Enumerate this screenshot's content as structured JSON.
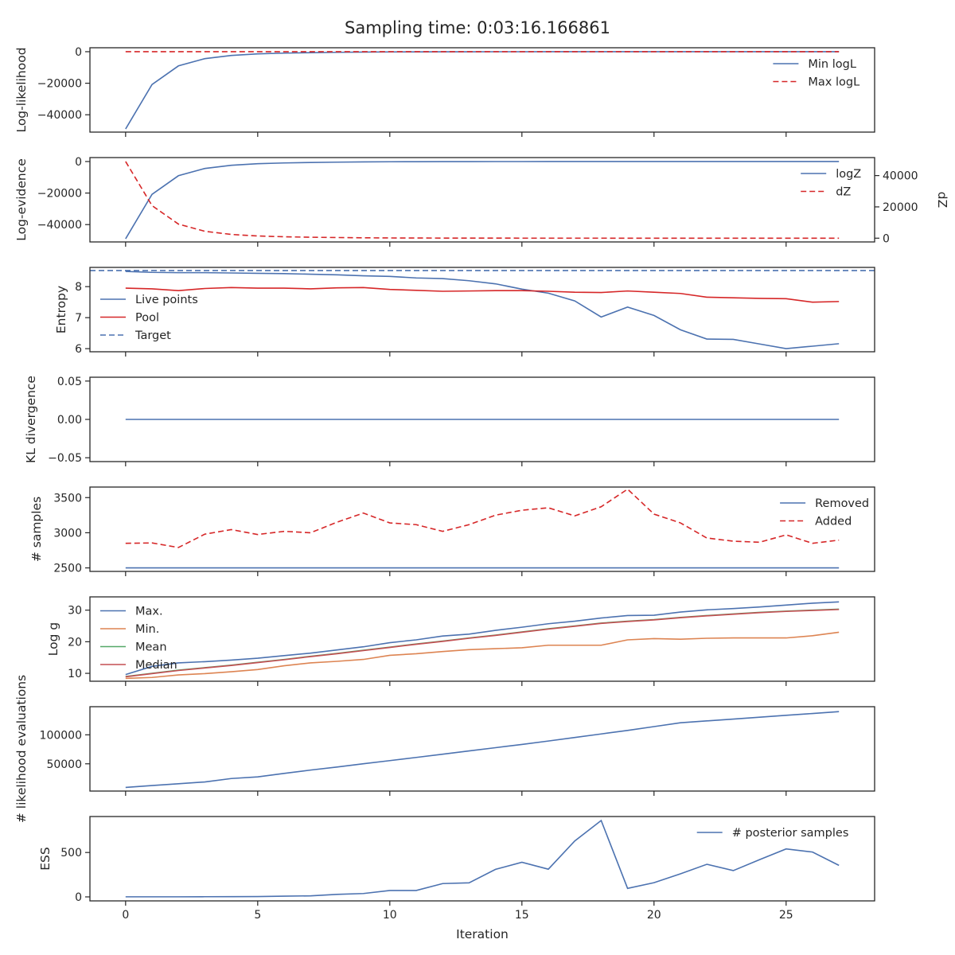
{
  "figure": {
    "title": "Sampling time: 0:03:16.166861",
    "xlabel": "Iteration"
  },
  "colors": {
    "blue": "#4c72b0",
    "orange": "#dd8452",
    "green": "#55a868",
    "red": "#c44e52",
    "redDash": "#d62728",
    "axis": "#262626"
  },
  "chart_data": [
    {
      "type": "line",
      "ylabel": "Log-likelihood",
      "xlim": [
        -1.35,
        28.35
      ],
      "ylim": [
        -51000,
        2500
      ],
      "xticks": [
        0,
        5,
        10,
        15,
        20,
        25
      ],
      "yticks": [
        0,
        -20000,
        -40000
      ],
      "ytick_labels": [
        "0",
        "−20000",
        "−40000"
      ],
      "legend": "top-right",
      "series": [
        {
          "name": "Min logL",
          "style": "solid",
          "color": "#4c72b0",
          "x": [
            0,
            1,
            2,
            3,
            4,
            5,
            6,
            7,
            8,
            9,
            10,
            11,
            12,
            13,
            14,
            15,
            16,
            17,
            18,
            19,
            20,
            21,
            22,
            23,
            24,
            25,
            26,
            27
          ],
          "y": [
            -49000,
            -20800,
            -9000,
            -4400,
            -2400,
            -1400,
            -900,
            -600,
            -400,
            -250,
            -150,
            -100,
            -60,
            -40,
            -30,
            -20,
            -15,
            -10,
            -8,
            -6,
            -5,
            -4,
            -3,
            -2,
            -2,
            -1,
            -1,
            -1
          ]
        },
        {
          "name": "Max logL",
          "style": "dashed",
          "color": "#d62728",
          "x": [
            0,
            27
          ],
          "y": [
            0,
            0
          ]
        }
      ]
    },
    {
      "type": "line",
      "ylabel": "Log-evidence",
      "y2label": "dZ",
      "xlim": [
        -1.35,
        28.35
      ],
      "ylim": [
        -51000,
        2500
      ],
      "y2lim": [
        -2400,
        51500
      ],
      "xticks": [
        0,
        5,
        10,
        15,
        20,
        25
      ],
      "yticks": [
        0,
        -20000,
        -40000
      ],
      "ytick_labels": [
        "0",
        "−20000",
        "−40000"
      ],
      "y2ticks": [
        0,
        20000,
        40000
      ],
      "y2tick_labels": [
        "0",
        "20000",
        "40000"
      ],
      "legend": "top-right",
      "series": [
        {
          "name": "logZ",
          "style": "solid",
          "color": "#4c72b0",
          "axis": "left",
          "x": [
            0,
            1,
            2,
            3,
            4,
            5,
            6,
            7,
            8,
            9,
            10,
            11,
            12,
            13,
            14,
            15,
            16,
            17,
            18,
            19,
            20,
            21,
            22,
            23,
            24,
            25,
            26,
            27
          ],
          "y": [
            -49000,
            -20800,
            -9000,
            -4400,
            -2400,
            -1400,
            -900,
            -600,
            -400,
            -250,
            -150,
            -100,
            -60,
            -40,
            -30,
            -20,
            -15,
            -10,
            -8,
            -6,
            -5,
            -4,
            -3,
            -2,
            -2,
            -1,
            -1,
            -1
          ]
        },
        {
          "name": "dZ",
          "style": "dashed",
          "color": "#d62728",
          "axis": "right",
          "x": [
            0,
            1,
            2,
            3,
            4,
            5,
            6,
            7,
            8,
            9,
            10,
            11,
            12,
            13,
            14,
            15,
            16,
            17,
            18,
            19,
            20,
            21,
            22,
            23,
            24,
            25,
            26,
            27
          ],
          "y": [
            49000,
            20800,
            9000,
            4400,
            2400,
            1400,
            900,
            600,
            400,
            250,
            150,
            100,
            60,
            40,
            30,
            20,
            15,
            10,
            8,
            6,
            5,
            4,
            3,
            2,
            2,
            1,
            1,
            0
          ]
        }
      ]
    },
    {
      "type": "line",
      "ylabel": "Entropy",
      "xlim": [
        -1.35,
        28.35
      ],
      "ylim": [
        5.9,
        8.62
      ],
      "xticks": [
        0,
        5,
        10,
        15,
        20,
        25
      ],
      "yticks": [
        6,
        7,
        8
      ],
      "ytick_labels": [
        "6",
        "7",
        "8"
      ],
      "legend": "left",
      "series": [
        {
          "name": "Live points",
          "style": "solid",
          "color": "#4c72b0",
          "x": [
            0,
            1,
            2,
            3,
            4,
            5,
            6,
            7,
            8,
            9,
            10,
            11,
            12,
            13,
            14,
            15,
            16,
            17,
            18,
            19,
            20,
            21,
            22,
            23,
            24,
            25,
            26,
            27
          ],
          "y": [
            8.49,
            8.46,
            8.45,
            8.45,
            8.44,
            8.43,
            8.42,
            8.4,
            8.38,
            8.35,
            8.33,
            8.28,
            8.26,
            8.19,
            8.09,
            7.92,
            7.79,
            7.54,
            7.02,
            7.34,
            7.07,
            6.61,
            6.31,
            6.3,
            6.15,
            6.0,
            6.08,
            6.16
          ]
        },
        {
          "name": "Pool",
          "style": "solid",
          "color": "#d62728",
          "x": [
            0,
            1,
            2,
            3,
            4,
            5,
            6,
            7,
            8,
            9,
            10,
            11,
            12,
            13,
            14,
            15,
            16,
            17,
            18,
            19,
            20,
            21,
            22,
            23,
            24,
            25,
            26,
            27
          ],
          "y": [
            7.95,
            7.93,
            7.87,
            7.94,
            7.97,
            7.95,
            7.95,
            7.93,
            7.96,
            7.97,
            7.91,
            7.88,
            7.85,
            7.86,
            7.87,
            7.87,
            7.85,
            7.82,
            7.81,
            7.86,
            7.82,
            7.78,
            7.66,
            7.64,
            7.62,
            7.61,
            7.5,
            7.52
          ]
        },
        {
          "name": "Target",
          "style": "dashed",
          "color": "#4c72b0",
          "hline": 8.52
        }
      ]
    },
    {
      "type": "line",
      "ylabel": "KL divergence",
      "xlim": [
        -1.35,
        28.35
      ],
      "ylim": [
        -0.055,
        0.055
      ],
      "xticks": [
        0,
        5,
        10,
        15,
        20,
        25
      ],
      "yticks": [
        0.05,
        0.0,
        -0.05
      ],
      "ytick_labels": [
        "0.05",
        "0.00",
        "−0.05"
      ],
      "series": [
        {
          "name": "",
          "style": "solid",
          "color": "#4c72b0",
          "x": [
            0,
            27
          ],
          "y": [
            0,
            0
          ]
        }
      ]
    },
    {
      "type": "line",
      "ylabel": "# samples",
      "xlim": [
        -1.35,
        28.35
      ],
      "ylim": [
        2450,
        3650
      ],
      "xticks": [
        0,
        5,
        10,
        15,
        20,
        25
      ],
      "yticks": [
        3500,
        3000,
        2500
      ],
      "ytick_labels": [
        "3500",
        "3000",
        "2500"
      ],
      "legend": "top-right",
      "series": [
        {
          "name": "Removed",
          "style": "solid",
          "color": "#4c72b0",
          "x": [
            0,
            27
          ],
          "y": [
            2500,
            2500
          ]
        },
        {
          "name": "Added",
          "style": "dashed",
          "color": "#d62728",
          "x": [
            0,
            1,
            2,
            3,
            4,
            5,
            6,
            7,
            8,
            9,
            10,
            11,
            12,
            13,
            14,
            15,
            16,
            17,
            18,
            19,
            20,
            21,
            22,
            23,
            24,
            25,
            26,
            27
          ],
          "y": [
            2850,
            2855,
            2790,
            2980,
            3045,
            2975,
            3020,
            3000,
            3150,
            3280,
            3140,
            3115,
            3020,
            3115,
            3250,
            3320,
            3355,
            3240,
            3370,
            3620,
            3265,
            3140,
            2925,
            2880,
            2865,
            2970,
            2850,
            2895
          ]
        }
      ]
    },
    {
      "type": "line",
      "ylabel": "Log g",
      "xlim": [
        -1.35,
        28.35
      ],
      "ylim": [
        7.5,
        34.2
      ],
      "xticks": [
        0,
        5,
        10,
        15,
        20,
        25
      ],
      "yticks": [
        30,
        20,
        10
      ],
      "ytick_labels": [
        "30",
        "20",
        "10"
      ],
      "legend": "left",
      "series": [
        {
          "name": "Max.",
          "style": "solid",
          "color": "#4c72b0",
          "x": [
            0,
            1,
            2,
            3,
            4,
            5,
            6,
            7,
            8,
            9,
            10,
            11,
            12,
            13,
            14,
            15,
            16,
            17,
            18,
            19,
            20,
            21,
            22,
            23,
            24,
            25,
            26,
            27
          ],
          "y": [
            9.6,
            12.2,
            13.3,
            13.7,
            14.2,
            14.8,
            15.6,
            16.4,
            17.4,
            18.4,
            19.7,
            20.6,
            21.8,
            22.4,
            23.6,
            24.6,
            25.7,
            26.5,
            27.5,
            28.3,
            28.4,
            29.4,
            30.1,
            30.5,
            31.0,
            31.6,
            32.2,
            32.6
          ]
        },
        {
          "name": "Min.",
          "style": "solid",
          "color": "#dd8452",
          "x": [
            0,
            1,
            2,
            3,
            4,
            5,
            6,
            7,
            8,
            9,
            10,
            11,
            12,
            13,
            14,
            15,
            16,
            17,
            18,
            19,
            20,
            21,
            22,
            23,
            24,
            25,
            26,
            27
          ],
          "y": [
            8.4,
            8.7,
            9.5,
            9.9,
            10.5,
            11.2,
            12.4,
            13.3,
            13.8,
            14.4,
            15.7,
            16.2,
            16.9,
            17.5,
            17.8,
            18.1,
            18.9,
            18.9,
            18.9,
            20.6,
            21.0,
            20.8,
            21.1,
            21.2,
            21.2,
            21.2,
            21.9,
            23.0
          ]
        },
        {
          "name": "Mean",
          "style": "solid",
          "color": "#55a868",
          "x": [
            0,
            1,
            2,
            3,
            4,
            5,
            6,
            7,
            8,
            9,
            10,
            11,
            12,
            13,
            14,
            15,
            16,
            17,
            18,
            19,
            20,
            21,
            22,
            23,
            24,
            25,
            26,
            27
          ],
          "y": [
            9.0,
            10.0,
            11.0,
            11.8,
            12.6,
            13.5,
            14.4,
            15.4,
            16.3,
            17.3,
            18.3,
            19.3,
            20.2,
            21.2,
            22.1,
            23.1,
            24.1,
            25.0,
            25.9,
            26.5,
            27.0,
            27.7,
            28.3,
            28.8,
            29.3,
            29.7,
            30.0,
            30.3
          ]
        },
        {
          "name": "Median",
          "style": "solid",
          "color": "#c44e52",
          "x": [
            0,
            1,
            2,
            3,
            4,
            5,
            6,
            7,
            8,
            9,
            10,
            11,
            12,
            13,
            14,
            15,
            16,
            17,
            18,
            19,
            20,
            21,
            22,
            23,
            24,
            25,
            26,
            27
          ],
          "y": [
            8.9,
            9.9,
            10.9,
            11.7,
            12.5,
            13.4,
            14.3,
            15.3,
            16.2,
            17.2,
            18.2,
            19.2,
            20.1,
            21.1,
            22.0,
            23.0,
            24.0,
            24.9,
            25.8,
            26.4,
            26.9,
            27.6,
            28.2,
            28.7,
            29.2,
            29.6,
            29.9,
            30.2
          ]
        }
      ]
    },
    {
      "type": "line",
      "ylabel": "# likelihood evaluations",
      "xlim": [
        -1.35,
        28.35
      ],
      "ylim": [
        3000,
        148500
      ],
      "xticks": [
        0,
        5,
        10,
        15,
        20,
        25
      ],
      "yticks": [
        100000,
        50000
      ],
      "ytick_labels": [
        "100000",
        "50000"
      ],
      "series": [
        {
          "name": "",
          "style": "solid",
          "color": "#4c72b0",
          "x": [
            0,
            1,
            2,
            3,
            4,
            5,
            6,
            7,
            8,
            9,
            10,
            11,
            12,
            13,
            14,
            15,
            16,
            17,
            18,
            19,
            20,
            21,
            22,
            23,
            24,
            25,
            26,
            27
          ],
          "y": [
            9200,
            12500,
            15600,
            18700,
            24600,
            27500,
            33400,
            39200,
            44500,
            50100,
            55500,
            61000,
            66600,
            72200,
            77800,
            83400,
            89300,
            95400,
            101500,
            107600,
            114200,
            120800,
            124000,
            127200,
            130400,
            133600,
            136800,
            140000
          ]
        }
      ]
    },
    {
      "type": "line",
      "ylabel": "ESS",
      "xlim": [
        -1.35,
        28.35
      ],
      "ylim": [
        -45,
        905
      ],
      "xticks": [
        0,
        5,
        10,
        15,
        20,
        25
      ],
      "yticks": [
        500,
        0
      ],
      "ytick_labels": [
        "500",
        "0"
      ],
      "legend": "top-right",
      "series": [
        {
          "name": "# posterior samples",
          "style": "solid",
          "color": "#4c72b0",
          "x": [
            0,
            1,
            2,
            3,
            4,
            5,
            6,
            7,
            8,
            9,
            10,
            11,
            12,
            13,
            14,
            15,
            16,
            17,
            18,
            19,
            20,
            21,
            22,
            23,
            24,
            25,
            26,
            27
          ],
          "y": [
            1,
            1,
            1,
            2,
            3,
            4,
            8,
            12,
            28,
            38,
            72,
            72,
            150,
            158,
            310,
            390,
            312,
            630,
            860,
            96,
            160,
            260,
            367,
            296,
            420,
            540,
            505,
            355
          ]
        }
      ]
    }
  ]
}
